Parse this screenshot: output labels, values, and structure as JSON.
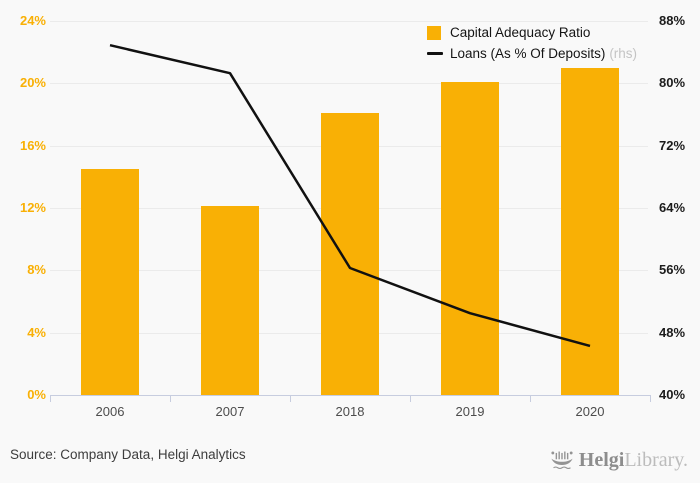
{
  "chart_data": {
    "type": "bar+line",
    "categories": [
      "2006",
      "2007",
      "2018",
      "2019",
      "2020"
    ],
    "series": [
      {
        "name": "Capital Adequacy Ratio",
        "type": "bar",
        "axis": "left",
        "color": "#f9b005",
        "values": [
          14.5,
          12.1,
          18.1,
          20.1,
          21.0
        ]
      },
      {
        "name": "Loans (As % Of Deposits)",
        "type": "line",
        "axis": "right",
        "color": "#111111",
        "values": [
          84.9,
          81.3,
          56.3,
          50.5,
          46.3
        ]
      }
    ],
    "left_axis": {
      "min": 0,
      "max": 24,
      "ticks": [
        "0%",
        "4%",
        "8%",
        "12%",
        "16%",
        "20%",
        "24%"
      ],
      "label_color": "#f9b005"
    },
    "right_axis": {
      "min": 40,
      "max": 88,
      "ticks": [
        "40%",
        "48%",
        "56%",
        "64%",
        "72%",
        "80%",
        "88%"
      ],
      "label_color": "#1c1c1c"
    },
    "grid": true,
    "legend_position": "top-right",
    "legend": [
      {
        "label": "Capital Adequacy Ratio",
        "suffix": "",
        "marker": "square",
        "color": "#f9b005"
      },
      {
        "label": "Loans (As % Of Deposits)",
        "suffix": "(rhs)",
        "marker": "line",
        "color": "#111111"
      }
    ]
  },
  "footer": {
    "source": "Source: Company Data, Helgi Analytics",
    "logo": {
      "name_bold": "Helgi",
      "name_light": "Library."
    }
  }
}
